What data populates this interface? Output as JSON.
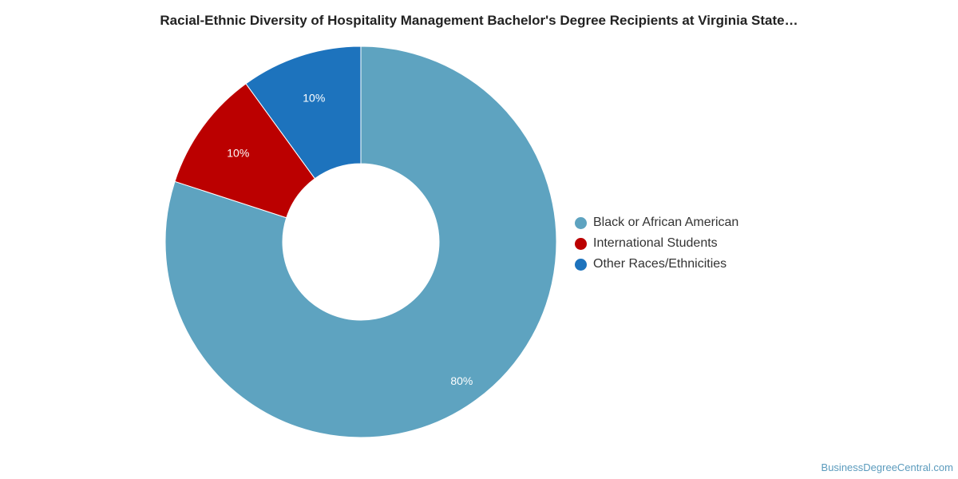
{
  "chart_data": {
    "type": "pie",
    "title": "Racial-Ethnic Diversity of Hospitality Management Bachelor's Degree Recipients at Virginia State…",
    "categories": [
      "Black or African American",
      "International Students",
      "Other Races/Ethnicities"
    ],
    "values": [
      80,
      10,
      10
    ],
    "data_labels": [
      "80%",
      "10%",
      "10%"
    ],
    "colors": [
      "#5ea3c0",
      "#bb0000",
      "#1d73bd"
    ],
    "donut": true,
    "legend_position": "right"
  },
  "legend": {
    "items": [
      {
        "label": "Black or African American",
        "color": "#5ea3c0"
      },
      {
        "label": "International Students",
        "color": "#bb0000"
      },
      {
        "label": "Other Races/Ethnicities",
        "color": "#1d73bd"
      }
    ]
  },
  "footer": {
    "source": "BusinessDegreeCentral.com"
  }
}
